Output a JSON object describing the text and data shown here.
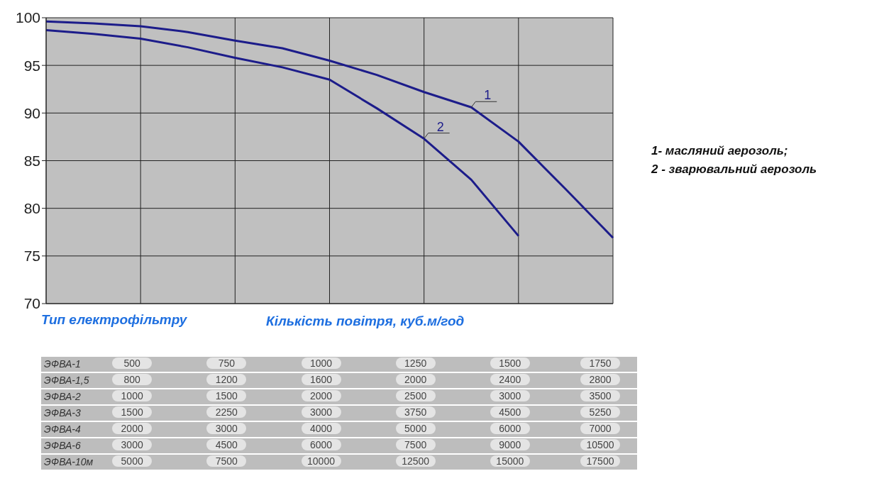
{
  "chart_data": {
    "type": "line",
    "xlabel": "Кількість повітря, куб.м/год",
    "categories": [
      null,
      null,
      null,
      null,
      null,
      null,
      null,
      null,
      null,
      null,
      null,
      null,
      null
    ],
    "ylim": [
      70,
      100
    ],
    "yticks": [
      70,
      75,
      80,
      85,
      90,
      95,
      100
    ],
    "grid": true,
    "tick_labels": "y",
    "marker": "none",
    "line_style": "solid",
    "series": [
      {
        "name": "1",
        "color": "#1c1c8a",
        "values": [
          99.6,
          99.4,
          99.1,
          98.5,
          97.6,
          96.8,
          95.5,
          94.0,
          92.2,
          90.6,
          87.0,
          82.0,
          76.9
        ]
      },
      {
        "name": "2",
        "color": "#1c1c8a",
        "values": [
          98.7,
          98.3,
          97.8,
          96.9,
          95.8,
          94.8,
          93.5,
          90.5,
          87.3,
          83.0,
          77.1,
          null,
          null
        ]
      }
    ],
    "annotations": [
      "Тип електрофільтру",
      "1- масляний аерозоль;",
      "2 - зварювальний аерозоль",
      "ЭФВА-1",
      "500",
      "750",
      "1000",
      "1250",
      "1500",
      "1750",
      "ЭФВА-1,5",
      "800",
      "1200",
      "1600",
      "2000",
      "2400",
      "2800",
      "ЭФВА-2",
      "1000",
      "1500",
      "2000",
      "2500",
      "3000",
      "3500",
      "ЭФВА-3",
      "1500",
      "2250",
      "3000",
      "3750",
      "4500",
      "5250",
      "ЭФВА-4",
      "2000",
      "3000",
      "4000",
      "5000",
      "6000",
      "7000",
      "ЭФВА-6",
      "3000",
      "4500",
      "6000",
      "7500",
      "9000",
      "10500",
      "ЭФВА-10м",
      "5000",
      "7500",
      "10000",
      "12500",
      "15000",
      "17500"
    ]
  }
}
